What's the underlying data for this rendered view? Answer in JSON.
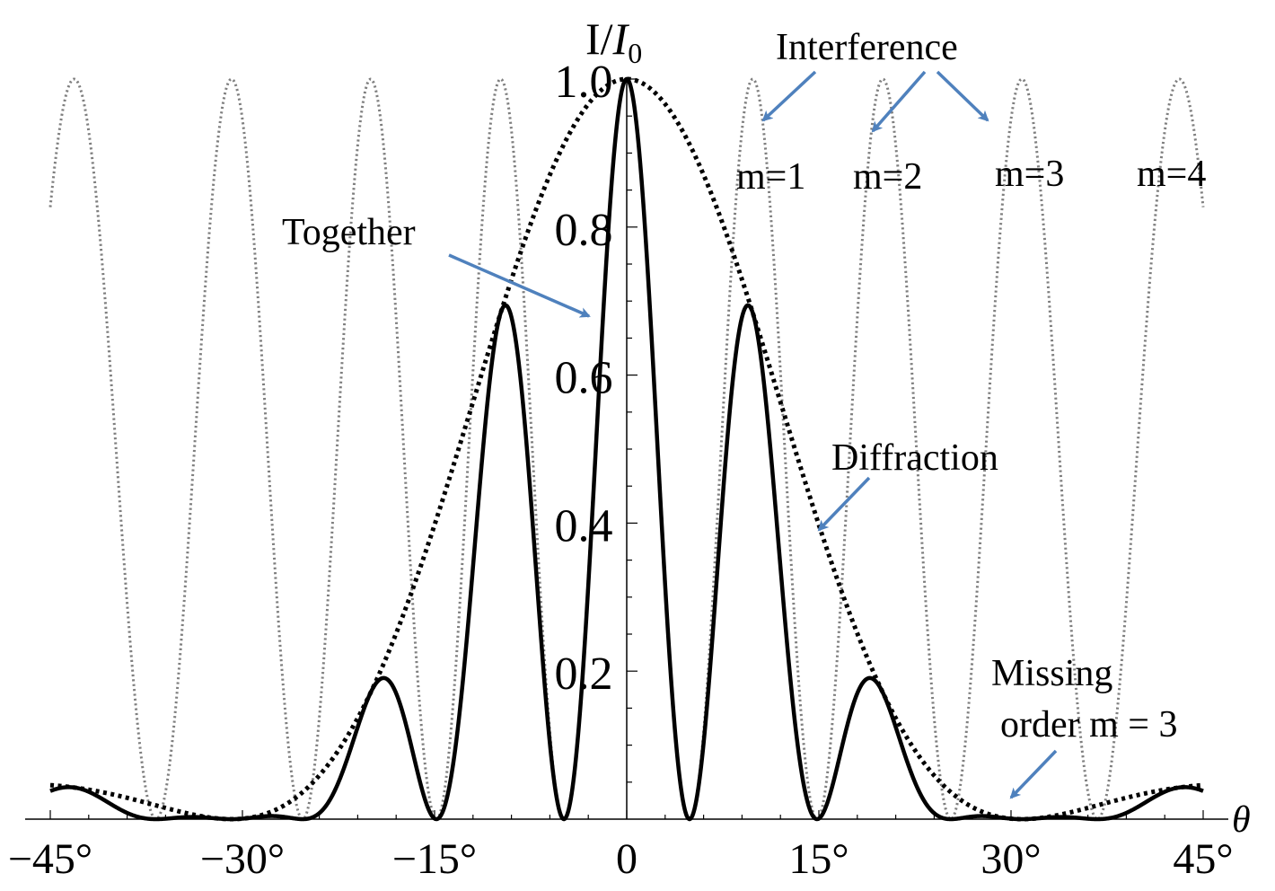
{
  "chart_data": {
    "type": "line",
    "x_unit": "degrees",
    "y_label_main": "I/",
    "y_label_italic": "I",
    "y_label_sub": "0",
    "x_label": "θ",
    "xlim": [
      -45,
      45
    ],
    "ylim": [
      0,
      1.0
    ],
    "x_ticks": [
      {
        "value": -45,
        "label": "−45°"
      },
      {
        "value": -30,
        "label": "−30°"
      },
      {
        "value": -15,
        "label": "−15°"
      },
      {
        "value": 0,
        "label": "0"
      },
      {
        "value": 15,
        "label": "15°"
      },
      {
        "value": 30,
        "label": "30°"
      },
      {
        "value": 45,
        "label": "45°"
      }
    ],
    "y_ticks": [
      {
        "value": 0.2,
        "label": "0.2"
      },
      {
        "value": 0.4,
        "label": "0.4"
      },
      {
        "value": 0.6,
        "label": "0.6"
      },
      {
        "value": 0.8,
        "label": "0.8"
      },
      {
        "value": 1.0,
        "label": "1.0"
      }
    ],
    "series": [
      {
        "key": "interference",
        "style": "light-dotted",
        "color": "#7f7f7f",
        "model": "cos^2(pi*d*sin(theta)/lambda)",
        "d_over_lambda": 5.85
      },
      {
        "key": "diffraction",
        "style": "heavy-dotted",
        "color": "#000000",
        "model": "sinc^2(pi*a*sin(theta)/lambda)",
        "a_over_lambda": 1.95
      },
      {
        "key": "together",
        "style": "solid",
        "color": "#000000",
        "model": "interference * diffraction"
      }
    ],
    "annotations": {
      "interference": "Interference",
      "together": "Together",
      "diffraction": "Diffraction",
      "missing_line1": "Missing",
      "missing_line2": "order m = 3",
      "m1": "m=1",
      "m2": "m=2",
      "m3": "m=3",
      "m4": "m=4"
    },
    "arrow_color": "#4f81bd"
  }
}
